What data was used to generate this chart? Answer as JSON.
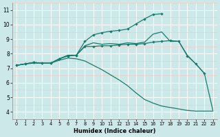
{
  "xlabel": "Humidex (Indice chaleur)",
  "background_color": "#cce8e8",
  "grid_color_major": "#ffffff",
  "grid_color_minor": "#f0c8c8",
  "line_color": "#1a7a6e",
  "xlim": [
    -0.5,
    23.5
  ],
  "ylim": [
    3.5,
    11.5
  ],
  "xticks": [
    0,
    1,
    2,
    3,
    4,
    5,
    6,
    7,
    8,
    9,
    10,
    11,
    12,
    13,
    14,
    15,
    16,
    17,
    18,
    19,
    20,
    21,
    22,
    23
  ],
  "yticks": [
    4,
    5,
    6,
    7,
    8,
    9,
    10,
    11
  ],
  "line1_x": [
    0,
    1,
    2,
    3,
    4,
    5,
    6,
    7,
    8,
    9,
    10,
    11,
    12,
    13,
    14,
    15,
    16,
    17
  ],
  "line1_y": [
    7.2,
    7.3,
    7.4,
    7.35,
    7.35,
    7.65,
    7.85,
    7.9,
    8.85,
    9.3,
    9.45,
    9.55,
    9.6,
    9.7,
    10.05,
    10.4,
    10.7,
    10.75
  ],
  "line2_x": [
    0,
    1,
    2,
    3,
    4,
    5,
    6,
    7,
    8,
    9,
    10,
    11,
    12,
    13,
    14,
    15,
    16,
    17,
    18,
    19,
    20,
    21,
    22
  ],
  "line2_y": [
    7.2,
    7.3,
    7.4,
    7.35,
    7.35,
    7.65,
    7.85,
    7.9,
    8.5,
    8.5,
    8.55,
    8.55,
    8.6,
    8.65,
    8.65,
    8.7,
    8.8,
    8.85,
    8.9,
    8.85,
    7.85,
    7.3,
    6.65
  ],
  "line3_x": [
    0,
    1,
    2,
    3,
    4,
    5,
    6,
    7,
    8,
    9,
    10,
    11,
    12,
    13,
    14,
    15,
    16,
    17,
    18,
    19,
    20,
    21,
    22,
    23
  ],
  "line3_y": [
    7.2,
    7.3,
    7.35,
    7.35,
    7.35,
    7.55,
    7.7,
    7.65,
    7.5,
    7.2,
    6.9,
    6.55,
    6.2,
    5.8,
    5.3,
    4.85,
    4.6,
    4.4,
    4.3,
    4.2,
    4.1,
    4.05,
    4.05,
    4.05
  ],
  "line4_x": [
    0,
    1,
    2,
    3,
    4,
    5,
    6,
    7,
    8,
    9,
    10,
    11,
    12,
    13,
    14,
    15,
    16,
    17,
    18,
    19,
    20,
    21,
    22,
    23
  ],
  "line4_y": [
    7.2,
    7.3,
    7.4,
    7.35,
    7.35,
    7.65,
    7.9,
    7.9,
    8.55,
    8.75,
    8.65,
    8.7,
    8.65,
    8.75,
    8.7,
    8.8,
    9.35,
    9.5,
    8.85,
    8.85,
    7.9,
    7.3,
    6.65,
    4.1
  ]
}
